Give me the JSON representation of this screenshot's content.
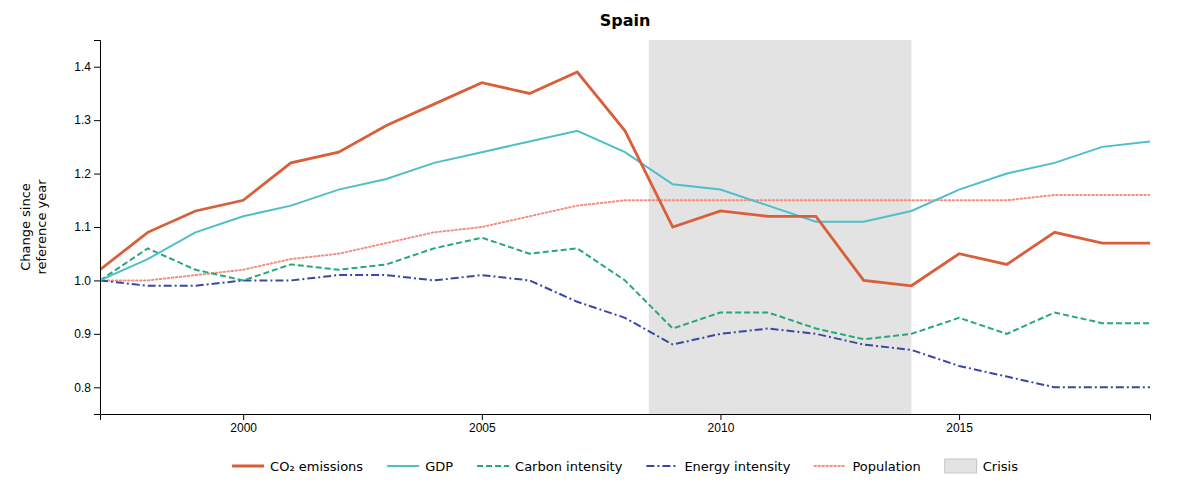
{
  "chart_data": {
    "type": "line",
    "title": "Spain",
    "ylabel": "Change since\nreference year",
    "x": [
      1997,
      1998,
      1999,
      2000,
      2001,
      2002,
      2003,
      2004,
      2005,
      2006,
      2007,
      2008,
      2009,
      2010,
      2011,
      2012,
      2013,
      2014,
      2015,
      2016,
      2017,
      2018,
      2019
    ],
    "series": [
      {
        "name": "CO₂ emissions",
        "color": "#d95f3b",
        "line_style": "solid",
        "values": [
          1.02,
          1.09,
          1.13,
          1.15,
          1.22,
          1.24,
          1.29,
          1.33,
          1.37,
          1.35,
          1.39,
          1.28,
          1.1,
          1.13,
          1.12,
          1.12,
          1.0,
          0.99,
          1.05,
          1.03,
          1.09,
          1.07,
          1.07
        ]
      },
      {
        "name": "GDP",
        "color": "#50bec8",
        "line_style": "solid",
        "values": [
          1.0,
          1.04,
          1.09,
          1.12,
          1.14,
          1.17,
          1.19,
          1.22,
          1.24,
          1.26,
          1.28,
          1.24,
          1.18,
          1.17,
          1.14,
          1.11,
          1.11,
          1.13,
          1.17,
          1.2,
          1.22,
          1.25,
          1.26
        ]
      },
      {
        "name": "Carbon intensity",
        "color": "#27a87a",
        "line_style": "dashed",
        "values": [
          1.0,
          1.06,
          1.02,
          1.0,
          1.03,
          1.02,
          1.03,
          1.06,
          1.08,
          1.05,
          1.06,
          1.0,
          0.91,
          0.94,
          0.94,
          0.91,
          0.89,
          0.9,
          0.93,
          0.9,
          0.94,
          0.92,
          0.92
        ]
      },
      {
        "name": "Energy intensity",
        "color": "#3a48a0",
        "line_style": "dashdot",
        "values": [
          1.0,
          0.99,
          0.99,
          1.0,
          1.0,
          1.01,
          1.01,
          1.0,
          1.01,
          1.0,
          0.96,
          0.93,
          0.88,
          0.9,
          0.91,
          0.9,
          0.88,
          0.87,
          0.84,
          0.82,
          0.8,
          0.8,
          0.8
        ]
      },
      {
        "name": "Population",
        "color": "#f09080",
        "line_style": "dotted",
        "values": [
          1.0,
          1.0,
          1.01,
          1.02,
          1.04,
          1.05,
          1.07,
          1.09,
          1.1,
          1.12,
          1.14,
          1.15,
          1.15,
          1.15,
          1.15,
          1.15,
          1.15,
          1.15,
          1.15,
          1.15,
          1.16,
          1.16,
          1.16
        ]
      }
    ],
    "spans": [
      {
        "name": "Crisis",
        "start": 2008.5,
        "end": 2014.0,
        "color": "#e3e3e3"
      }
    ],
    "xlim": [
      1997,
      2019
    ],
    "xticks": [
      2000,
      2005,
      2010,
      2015
    ],
    "ylim": [
      0.75,
      1.45
    ],
    "yticks": [
      0.8,
      0.9,
      {
        "value": 1.0,
        "label": "1.0"
      },
      1.1,
      1.2,
      1.3,
      1.4
    ],
    "grid": false,
    "legend": "bottom"
  }
}
